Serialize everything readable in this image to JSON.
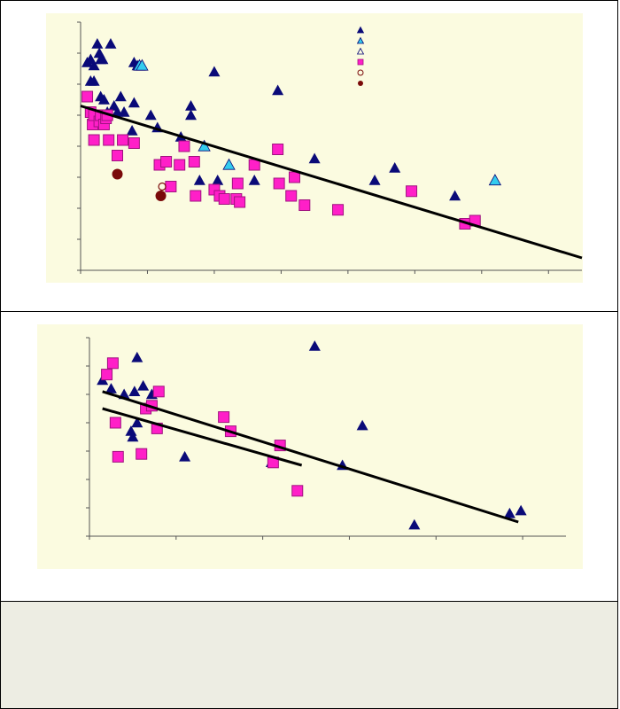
{
  "colors": {
    "background": "#fbfbe0",
    "navy": "#0a0a78",
    "cyan": "#33ccee",
    "magenta": "#ff1fc8",
    "maroon": "#7a0a0a",
    "footer": "#ededE3"
  },
  "chart_data": [
    {
      "type": "scatter",
      "title": "",
      "xlabel": "",
      "ylabel": "",
      "xlim": [
        0,
        7.5
      ],
      "ylim": [
        0,
        8
      ],
      "xticks": [
        0,
        1,
        2,
        3,
        4,
        5,
        6,
        7
      ],
      "yticks": [
        0,
        1,
        2,
        3,
        4,
        5,
        6,
        7,
        8
      ],
      "grid": false,
      "legend": "top-right",
      "legend_symbols": [
        "filled-navy-triangle",
        "filled-cyan-triangle",
        "open-triangle",
        "magenta-square-x",
        "open-circle",
        "maroon-circle"
      ],
      "series": [
        {
          "marker": "navy-triangle",
          "points": [
            [
              0.1,
              6.7
            ],
            [
              0.15,
              6.8
            ],
            [
              0.2,
              6.6
            ],
            [
              0.25,
              7.3
            ],
            [
              0.28,
              7.0
            ],
            [
              0.3,
              6.8
            ],
            [
              0.33,
              6.8
            ],
            [
              0.45,
              7.3
            ],
            [
              0.15,
              6.1
            ],
            [
              0.2,
              6.1
            ],
            [
              0.3,
              5.6
            ],
            [
              0.35,
              5.5
            ],
            [
              0.4,
              5.1
            ],
            [
              0.5,
              5.3
            ],
            [
              0.55,
              5.1
            ],
            [
              0.6,
              5.6
            ],
            [
              0.65,
              5.1
            ],
            [
              0.8,
              6.7
            ],
            [
              0.8,
              5.4
            ],
            [
              0.85,
              6.6
            ],
            [
              0.77,
              4.5
            ],
            [
              1.05,
              5.0
            ],
            [
              1.15,
              4.6
            ],
            [
              1.5,
              4.3
            ],
            [
              1.65,
              5.3
            ],
            [
              1.65,
              5.0
            ],
            [
              1.78,
              2.9
            ],
            [
              2.0,
              6.4
            ],
            [
              2.05,
              2.9
            ],
            [
              2.6,
              2.9
            ],
            [
              2.95,
              5.8
            ],
            [
              3.5,
              3.6
            ],
            [
              4.4,
              2.9
            ],
            [
              4.7,
              3.3
            ],
            [
              5.6,
              2.4
            ]
          ]
        },
        {
          "marker": "cyan-triangle",
          "points": [
            [
              0.88,
              6.6
            ],
            [
              0.92,
              6.6
            ],
            [
              1.85,
              4.0
            ],
            [
              2.22,
              3.4
            ],
            [
              6.2,
              2.9
            ]
          ]
        },
        {
          "marker": "magenta-square",
          "points": [
            [
              0.1,
              5.6
            ],
            [
              0.15,
              5.1
            ],
            [
              0.18,
              4.7
            ],
            [
              0.2,
              5.0
            ],
            [
              0.28,
              4.8
            ],
            [
              0.3,
              5.0
            ],
            [
              0.35,
              4.7
            ],
            [
              0.38,
              4.9
            ],
            [
              0.4,
              5.0
            ],
            [
              0.2,
              4.2
            ],
            [
              0.42,
              4.2
            ],
            [
              0.55,
              3.7
            ],
            [
              0.63,
              4.2
            ],
            [
              0.8,
              4.1
            ],
            [
              1.18,
              3.4
            ],
            [
              1.28,
              3.5
            ],
            [
              1.35,
              2.7
            ],
            [
              1.48,
              3.4
            ],
            [
              1.55,
              4.0
            ],
            [
              1.7,
              3.5
            ],
            [
              1.72,
              2.4
            ],
            [
              2.0,
              2.6
            ],
            [
              2.08,
              2.4
            ],
            [
              2.15,
              2.3
            ],
            [
              2.33,
              2.3
            ],
            [
              2.35,
              2.8
            ],
            [
              2.38,
              2.2
            ],
            [
              2.6,
              3.4
            ],
            [
              2.95,
              3.9
            ],
            [
              2.97,
              2.8
            ],
            [
              3.15,
              2.4
            ],
            [
              3.2,
              3.0
            ],
            [
              3.35,
              2.1
            ],
            [
              3.85,
              1.95
            ],
            [
              4.95,
              2.55
            ],
            [
              5.75,
              1.5
            ],
            [
              5.9,
              1.6
            ]
          ]
        },
        {
          "marker": "maroon-circle",
          "points": [
            [
              0.55,
              3.1
            ],
            [
              1.2,
              2.4
            ]
          ]
        },
        {
          "marker": "open-circle",
          "points": [
            [
              1.22,
              2.7
            ]
          ]
        }
      ],
      "trendline": [
        [
          0,
          5.3
        ],
        [
          7.5,
          0.4
        ]
      ]
    },
    {
      "type": "scatter",
      "title": "",
      "xlabel": "",
      "ylabel": "",
      "xlim": [
        0,
        5.5
      ],
      "ylim": [
        0,
        7
      ],
      "xticks": [
        0,
        1,
        2,
        3,
        4,
        5
      ],
      "yticks": [
        0,
        1,
        2,
        3,
        4,
        5,
        6,
        7
      ],
      "grid": false,
      "series": [
        {
          "marker": "navy-triangle",
          "points": [
            [
              0.15,
              5.5
            ],
            [
              0.25,
              5.2
            ],
            [
              0.4,
              5.0
            ],
            [
              0.48,
              3.7
            ],
            [
              0.5,
              3.5
            ],
            [
              0.55,
              6.3
            ],
            [
              0.52,
              5.1
            ],
            [
              0.55,
              4.0
            ],
            [
              0.62,
              5.3
            ],
            [
              0.72,
              5.0
            ],
            [
              1.1,
              2.8
            ],
            [
              2.1,
              2.6
            ],
            [
              2.6,
              6.7
            ],
            [
              2.92,
              2.5
            ],
            [
              3.15,
              3.9
            ],
            [
              3.75,
              0.4
            ],
            [
              4.85,
              0.8
            ],
            [
              4.98,
              0.9
            ]
          ]
        },
        {
          "marker": "magenta-square",
          "points": [
            [
              0.2,
              5.7
            ],
            [
              0.27,
              6.1
            ],
            [
              0.3,
              4.0
            ],
            [
              0.33,
              2.8
            ],
            [
              0.6,
              2.9
            ],
            [
              0.65,
              4.5
            ],
            [
              0.72,
              4.6
            ],
            [
              0.78,
              3.8
            ],
            [
              0.8,
              5.1
            ],
            [
              1.55,
              4.2
            ],
            [
              1.63,
              3.7
            ],
            [
              2.12,
              2.6
            ],
            [
              2.2,
              3.2
            ],
            [
              2.4,
              1.6
            ]
          ]
        }
      ],
      "trendlines": [
        [
          [
            0.15,
            5.1
          ],
          [
            4.95,
            0.5
          ]
        ],
        [
          [
            0.15,
            4.5
          ],
          [
            2.45,
            2.5
          ]
        ]
      ]
    }
  ]
}
